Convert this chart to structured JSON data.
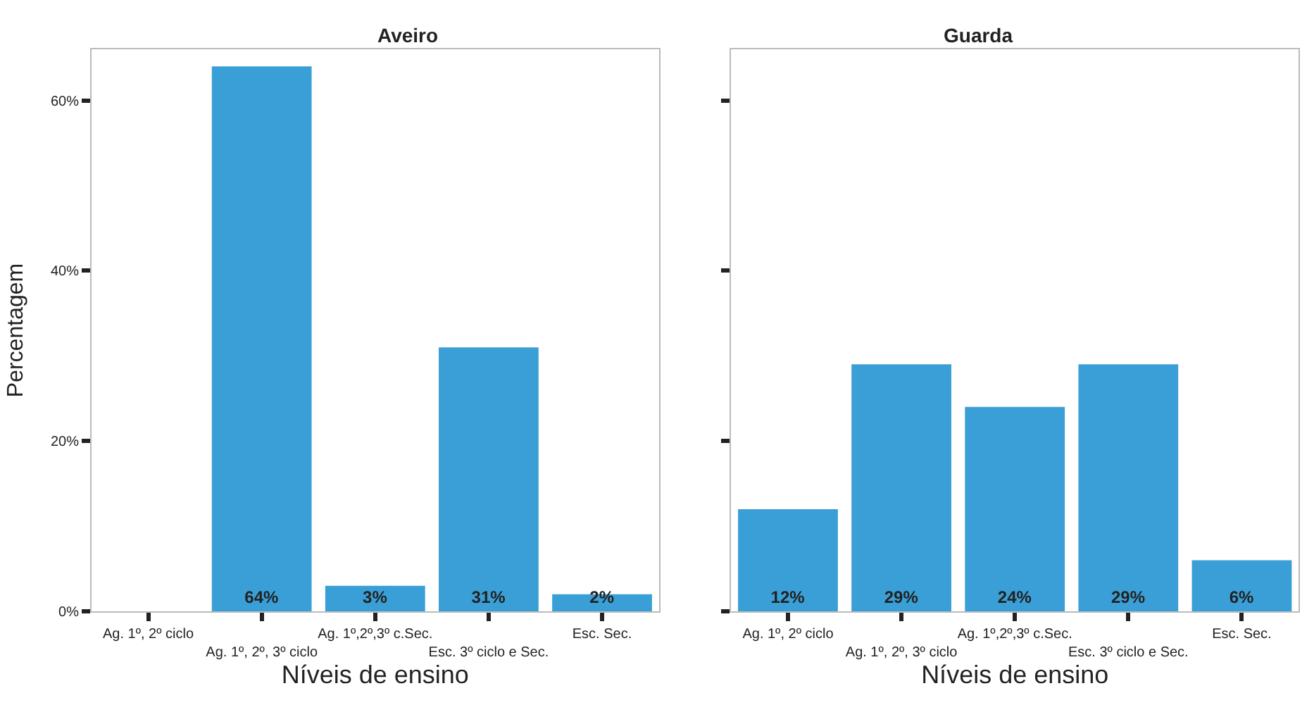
{
  "chart_data": [
    {
      "type": "bar",
      "title": "Aveiro",
      "xlabel": "Níveis de ensino",
      "ylabel": "Percentagem",
      "categories": [
        "Ag. 1º, 2º ciclo",
        "Ag. 1º, 2º, 3º ciclo",
        "Ag. 1º,2º,3º c.Sec.",
        "Esc. 3º ciclo e Sec.",
        "Esc. Sec."
      ],
      "values": [
        0,
        64,
        3,
        31,
        2
      ],
      "value_labels": [
        null,
        "64%",
        "3%",
        "31%",
        "2%"
      ],
      "color": "#3a9fd6",
      "ylim": [
        0,
        66
      ],
      "yticks": [
        {
          "value": 0,
          "label": "0%"
        },
        {
          "value": 20,
          "label": "20%"
        },
        {
          "value": 40,
          "label": "40%"
        },
        {
          "value": 60,
          "label": "60%"
        }
      ]
    },
    {
      "type": "bar",
      "title": "Guarda",
      "xlabel": "Níveis de ensino",
      "categories": [
        "Ag. 1º, 2º ciclo",
        "Ag. 1º, 2º, 3º ciclo",
        "Ag. 1º,2º,3º c.Sec.",
        "Esc. 3º ciclo e Sec.",
        "Esc. Sec."
      ],
      "values": [
        12,
        29,
        24,
        29,
        6
      ],
      "value_labels": [
        "12%",
        "29%",
        "24%",
        "29%",
        "6%"
      ],
      "color": "#3a9fd6",
      "ylim": [
        0,
        66
      ],
      "yticks": [
        {
          "value": 0,
          "label": null
        },
        {
          "value": 20,
          "label": null
        },
        {
          "value": 40,
          "label": null
        },
        {
          "value": 60,
          "label": null
        }
      ],
      "tick_labels": "x"
    }
  ]
}
